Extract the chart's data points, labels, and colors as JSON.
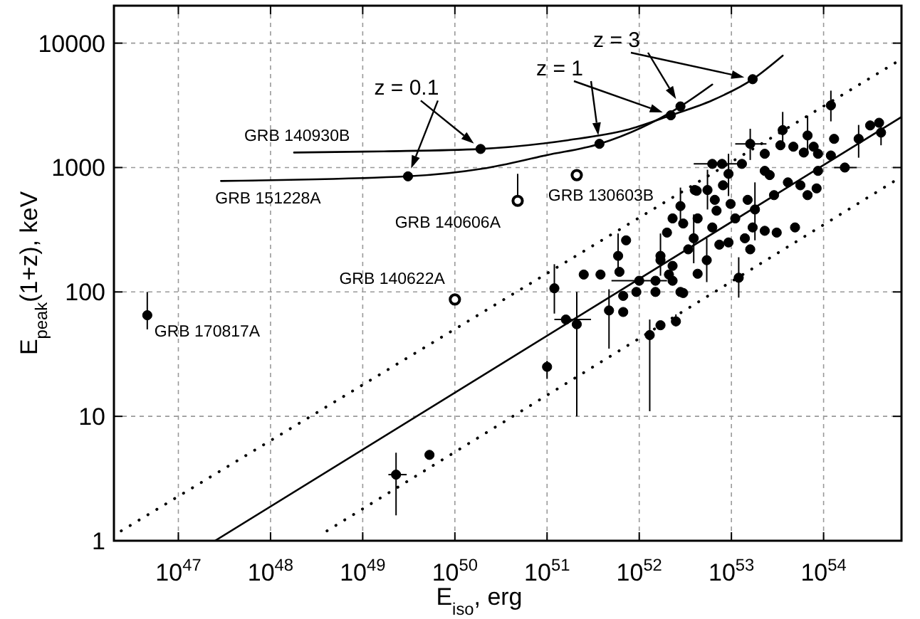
{
  "chart_data": {
    "type": "scatter",
    "xlabel": "E$_{iso}$, erg",
    "ylabel": "E$_{peak}$(1+z), keV",
    "log": "xy",
    "grid": true,
    "xlim": [
      2e+46,
      7e+54
    ],
    "ylim": [
      1,
      20000
    ],
    "xticks": [
      {
        "value": 1e+47,
        "label": "10$^{47}$"
      },
      {
        "value": 1e+48,
        "label": "10$^{48}$"
      },
      {
        "value": 1e+49,
        "label": "10$^{49}$"
      },
      {
        "value": 1e+50,
        "label": "10$^{50}$"
      },
      {
        "value": 1e+51,
        "label": "10$^{51}$"
      },
      {
        "value": 1e+52,
        "label": "10$^{52}$"
      },
      {
        "value": 1e+53,
        "label": "10$^{53}$"
      },
      {
        "value": 1e+54,
        "label": "10$^{54}$"
      }
    ],
    "yticks": [
      1,
      10,
      100,
      1000,
      10000
    ],
    "series": [
      {
        "type": "line",
        "color": "#000000",
        "line_style": "solid",
        "x": [
          2.5e+47,
          7e+54
        ],
        "values": [
          1,
          2550
        ]
      },
      {
        "type": "line",
        "color": "#000000",
        "line_style": "dotted",
        "x": [
          2.4e+46,
          6.3e+54
        ],
        "values": [
          1.2,
          7100
        ]
      },
      {
        "type": "line",
        "color": "#000000",
        "line_style": "dotted",
        "x": [
          4.1e+48,
          5.9e+54
        ],
        "values": [
          1.2,
          780
        ]
      },
      {
        "type": "line",
        "name": "GRB 140930B",
        "color": "#000000",
        "line_style": "solid",
        "x": [
          1.8e+48,
          1.7e+49,
          1.9e+50,
          1.7e+51,
          7.2e+51,
          2.2e+52,
          6.2e+52,
          1.7e+53,
          3.6e+53
        ],
        "values": [
          1320,
          1350,
          1410,
          1660,
          2000,
          2630,
          3470,
          5130,
          7940
        ]
      },
      {
        "type": "line",
        "name": "GRB 151228A",
        "color": "#000000",
        "line_style": "solid",
        "x": [
          2.9e+47,
          3.1e+49,
          2e+50,
          1e+51,
          3.7e+51,
          2.8e+52,
          6.2e+52
        ],
        "values": [
          780,
          850,
          980,
          1260,
          1550,
          3100,
          4650
        ]
      },
      {
        "color": "#000000",
        "marker": "circle",
        "x": [
          1.9e+50,
          2.2e+52,
          1.7e+53
        ],
        "values": [
          1410,
          2630,
          5130
        ]
      },
      {
        "color": "#000000",
        "marker": "circle",
        "x": [
          3.1e+49,
          3.7e+51,
          2.8e+52
        ],
        "values": [
          850,
          1550,
          3100
        ]
      },
      {
        "color": "#ffffff",
        "marker": "circle",
        "x": [
          4.8e+50,
          2.1e+51,
          1e+50
        ],
        "values": [
          540,
          870,
          87
        ],
        "errors": [
          [
            540,
            890
          ],
          null,
          null
        ]
      },
      {
        "color": "#000000",
        "marker": "circle",
        "x": [
          1e+51,
          1.6e+51,
          2.1e+51,
          4.7e+51,
          6.7e+51,
          6.7e+51,
          1.3e+52,
          1.7e+52,
          2.5e+52,
          9.3e+51,
          1.5e+52,
          3e+52,
          1.2e+51,
          1.2e+54,
          3.2e+54,
          4e+54,
          4.2e+54,
          2.4e+54,
          1.7e+54,
          1.3e+54,
          1.2e+54,
          8.7e+53,
          8.4e+53,
          7.8e+53,
          6.7e+53,
          6.1e+53,
          4.7e+53,
          3.6e+53,
          3.4e+53,
          2.3e+53,
          1.6e+53,
          2.6e+53,
          2.9e+53,
          4.1e+53,
          5.6e+53,
          6.7e+53,
          4.9e+53,
          3.1e+53,
          2.3e+53,
          1.8e+53,
          1.4e+53,
          1.6e+53,
          1.2e+53,
          1.1e+53,
          9.8e+52,
          7.9e+52,
          9.3e+52,
          8.1e+52,
          6.6e+52,
          6.9e+52,
          5.5e+52,
          6.2e+52,
          7.4e+52,
          5.4e+52,
          4.3e+52,
          4e+52,
          4.3e+52,
          3.9e+52,
          3.4e+52,
          3e+52,
          2.8e+52,
          2.3e+52,
          2.3e+52,
          2e+52,
          1.7e+52,
          1e+52,
          2.8e+52,
          7.2e+51,
          1.3e+53,
          2.3e+53,
          1.5e+53,
          1.7e+53,
          9.3e+52,
          4.2e+52,
          2.3e+52,
          5.9e+51,
          6.1e+51,
          3.8e+51,
          2.5e+51,
          1.7e+52,
          1.5e+52,
          2.1e+52,
          6.2e+52,
          8.7e+53,
          2.3e+49,
          5.3e+49,
          4.6e+46
        ],
        "values": [
          25,
          60,
          55,
          71,
          69,
          93,
          45,
          54,
          58,
          100,
          100,
          98,
          107,
          3160,
          2180,
          2290,
          1910,
          1700,
          1000,
          1700,
          1250,
          940,
          680,
          1470,
          1810,
          1320,
          1470,
          2000,
          1510,
          1290,
          1550,
          870,
          600,
          760,
          720,
          600,
          330,
          300,
          310,
          460,
          270,
          220,
          130,
          390,
          510,
          1070,
          890,
          720,
          550,
          450,
          660,
          330,
          240,
          180,
          140,
          660,
          390,
          270,
          220,
          355,
          490,
          162,
          123,
          300,
          195,
          123,
          100,
          260,
          1070,
          940,
          550,
          330,
          250,
          650,
          390,
          195,
          145,
          138,
          138,
          180,
          123,
          138,
          1070,
          1290,
          3.4,
          4.9,
          65
        ],
        "errors": [
          [
            20,
            28
          ],
          null,
          [
            10,
            100
          ],
          [
            35,
            105
          ],
          null,
          null,
          [
            11,
            60
          ],
          null,
          [
            53,
            66
          ],
          null,
          null,
          null,
          [
            67,
            167
          ],
          [
            2350,
            4150
          ],
          null,
          null,
          [
            1510,
            2410
          ],
          [
            1200,
            2200
          ],
          null,
          null,
          null,
          null,
          null,
          null,
          [
            1310,
            2610
          ],
          null,
          null,
          [
            1400,
            2800
          ],
          null,
          null,
          [
            1150,
            2050
          ],
          null,
          null,
          null,
          null,
          null,
          null,
          null,
          null,
          [
            260,
            760
          ],
          null,
          null,
          [
            90,
            190
          ],
          null,
          null,
          null,
          [
            590,
            1290
          ],
          null,
          null,
          null,
          [
            460,
            960
          ],
          null,
          null,
          [
            120,
            270
          ],
          null,
          null,
          null,
          [
            170,
            420
          ],
          null,
          null,
          [
            340,
            690
          ],
          null,
          null,
          null,
          [
            135,
            295
          ],
          null,
          null,
          null,
          null,
          null,
          null,
          null,
          null,
          null,
          null,
          [
            135,
            295
          ],
          null,
          null,
          null,
          null,
          null,
          null,
          null,
          null,
          [
            1.6,
            5.1
          ],
          null,
          [
            50,
            100
          ]
        ],
        "xerrors": [
          null,
          [
            1.2e+51,
            3e+51
          ],
          null,
          null,
          null,
          null,
          null,
          null,
          null,
          null,
          null,
          null,
          null,
          null,
          null,
          null,
          null,
          null,
          [
            1.3e+54,
            2.3e+54
          ],
          null,
          null,
          null,
          null,
          null,
          null,
          null,
          null,
          null,
          null,
          null,
          [
            1.1e+53,
            2.4e+53
          ],
          null,
          null,
          null,
          null,
          null,
          null,
          null,
          null,
          null,
          null,
          null,
          null,
          null,
          null,
          [
            3.9e+52,
            1.29e+53
          ],
          null,
          null,
          null,
          null,
          null,
          null,
          null,
          null,
          null,
          null,
          null,
          null,
          null,
          null,
          null,
          null,
          null,
          null,
          null,
          [
            5e+51,
            2e+52
          ],
          null,
          null,
          null,
          null,
          null,
          null,
          null,
          null,
          null,
          null,
          null,
          null,
          null,
          null,
          null,
          null,
          null,
          null,
          [
            1.9e+49,
            3e+49
          ],
          null,
          null
        ]
      }
    ],
    "annotations": [
      {
        "text": "GRB 170817A",
        "x": 4.6e+46,
        "y": 65
      },
      {
        "text": "GRB 140622A",
        "x": 1e+50,
        "y": 87
      },
      {
        "text": "GRB 140606A",
        "x": 4.8e+50,
        "y": 540
      },
      {
        "text": "GRB 130603B",
        "x": 2.1e+51,
        "y": 870
      },
      {
        "text": "z = 0.1",
        "x": 1.9e+50,
        "y": 1410
      },
      "z = 1",
      "z = 3"
    ]
  }
}
